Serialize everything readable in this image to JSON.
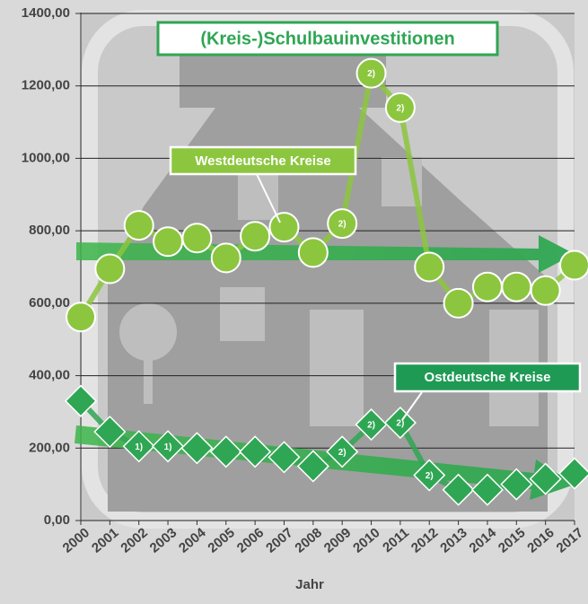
{
  "chart_data": {
    "type": "line",
    "title": "(Kreis-)Schulbauinvestitionen",
    "x_label": "Jahr",
    "categories": [
      "2000",
      "2001",
      "2002",
      "2003",
      "2004",
      "2005",
      "2006",
      "2007",
      "2008",
      "2009",
      "2010",
      "2011",
      "2012",
      "2013",
      "2014",
      "2015",
      "2016",
      "2017"
    ],
    "series": [
      {
        "name": "Westdeutsche Kreise",
        "color": "#8cc63e",
        "marker": "circle",
        "values": [
          562,
          695,
          815,
          770,
          780,
          725,
          785,
          810,
          740,
          820,
          1235,
          1140,
          700,
          600,
          645,
          645,
          635,
          705
        ],
        "point_labels": [
          null,
          null,
          null,
          null,
          null,
          null,
          null,
          null,
          null,
          "2)",
          "2)",
          "2)",
          null,
          null,
          null,
          null,
          null,
          null
        ]
      },
      {
        "name": "Ostdeutsche Kreise",
        "color": "#2fa653",
        "marker": "diamond",
        "values": [
          330,
          245,
          205,
          205,
          200,
          190,
          190,
          175,
          150,
          190,
          265,
          270,
          125,
          85,
          85,
          100,
          115,
          130
        ],
        "point_labels": [
          null,
          null,
          "1)",
          "1)",
          null,
          null,
          null,
          null,
          null,
          "2)",
          "2)",
          "2)",
          "2)",
          null,
          null,
          null,
          null,
          null
        ]
      }
    ],
    "ylim": [
      0,
      1400
    ],
    "yticks": [
      {
        "value": 0,
        "label": "0,00"
      },
      {
        "value": 200,
        "label": "200,00"
      },
      {
        "value": 400,
        "label": "400,00"
      },
      {
        "value": 600,
        "label": "600,00"
      },
      {
        "value": 800,
        "label": "800,00"
      },
      {
        "value": 1000,
        "label": "1000,00"
      },
      {
        "value": 1200,
        "label": "1200,00"
      },
      {
        "value": 1400,
        "label": "1400,00"
      }
    ],
    "grid": true
  }
}
